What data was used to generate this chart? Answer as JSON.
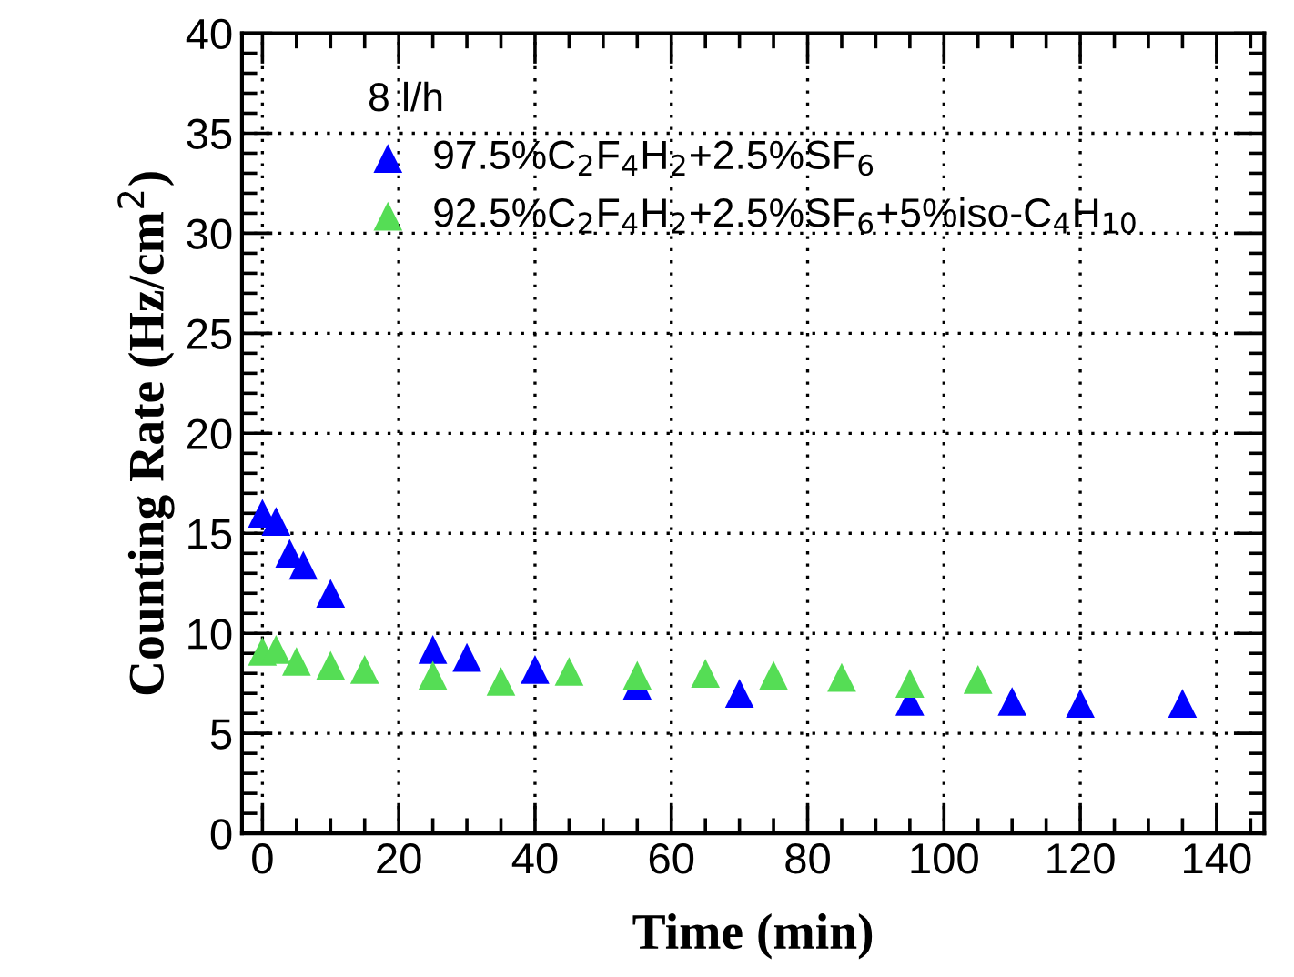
{
  "chart_data": {
    "type": "scatter",
    "xlabel": "Time (min)",
    "ylabel": "Counting Rate (Hz/cm$^{2}$)",
    "legend_title": "8 l/h",
    "legend": "top",
    "marker": "triangle",
    "grid": true,
    "xlim": [
      -3,
      147
    ],
    "ylim": [
      0,
      40
    ],
    "xticks": [
      0,
      20,
      40,
      60,
      80,
      100,
      120,
      140
    ],
    "yticks": [
      0,
      5,
      10,
      15,
      20,
      25,
      30,
      35,
      40
    ],
    "series": [
      {
        "name": "97.5%C$_{2}$F$_{4}$H$_{2}$+2.5%SF$_{6}$",
        "color": "#0000ff",
        "x": [
          0,
          2,
          4,
          6,
          10,
          25,
          30,
          40,
          55,
          70,
          95,
          110,
          120,
          135
        ],
        "values": [
          16.0,
          15.6,
          14.0,
          13.4,
          12.0,
          9.2,
          8.8,
          8.2,
          7.4,
          7.0,
          6.6,
          6.6,
          6.5,
          6.5
        ]
      },
      {
        "name": "92.5%C$_{2}$F$_{4}$H$_{2}$+2.5%SF$_{6}$+5%iso-C$_{4}$H$_{10}$",
        "color": "#55dd55",
        "x": [
          0,
          2,
          5,
          10,
          15,
          25,
          35,
          45,
          55,
          65,
          75,
          85,
          95,
          105
        ],
        "values": [
          9.1,
          9.2,
          8.6,
          8.4,
          8.2,
          7.9,
          7.6,
          8.1,
          7.9,
          8.0,
          7.9,
          7.8,
          7.5,
          7.7
        ]
      }
    ]
  }
}
